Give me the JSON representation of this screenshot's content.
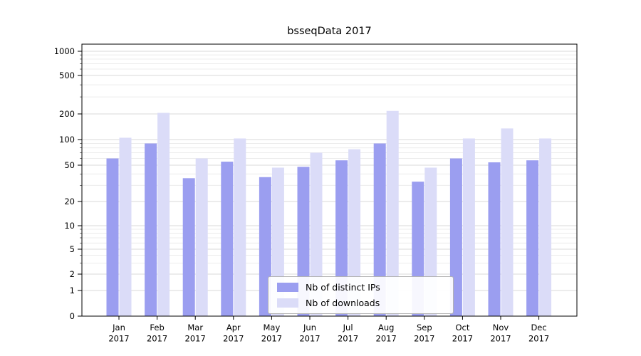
{
  "chart_data": {
    "type": "bar",
    "title": "bsseqData 2017",
    "categories": [
      "Jan",
      "Feb",
      "Mar",
      "Apr",
      "May",
      "Jun",
      "Jul",
      "Aug",
      "Sep",
      "Oct",
      "Nov",
      "Dec"
    ],
    "year_label": "2017",
    "series": [
      {
        "name": "Nb of distinct IPs",
        "color": "#9b9ef0",
        "values": [
          60,
          90,
          36,
          55,
          37,
          48,
          57,
          90,
          33,
          60,
          54,
          57
        ]
      },
      {
        "name": "Nb of downloads",
        "color": "#dbdcf8",
        "values": [
          105,
          205,
          60,
          103,
          47,
          70,
          77,
          215,
          47,
          103,
          135,
          103
        ]
      }
    ],
    "yticks": [
      0,
      1,
      2,
      5,
      10,
      20,
      50,
      100,
      200,
      500,
      1000
    ],
    "ylim": [
      0,
      1000
    ],
    "yscale": "symlog",
    "xlabel": "",
    "ylabel": "",
    "grid": true,
    "gridline_color_major": "#d9d9d9",
    "gridline_color_minor": "#ececec",
    "legend_position": "bottom-center-inside"
  }
}
